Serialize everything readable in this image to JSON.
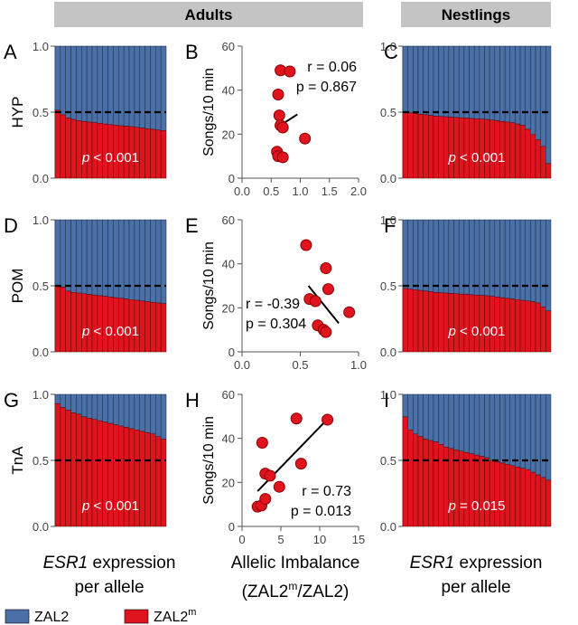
{
  "header": {
    "adults_label": "Adults",
    "nestlings_label": "Nestlings"
  },
  "legend": [
    {
      "label": "ZAL2",
      "color": "#4a70a8"
    },
    {
      "label": "ZAL2",
      "sup": "m",
      "color": "#e0141e"
    }
  ],
  "colors": {
    "blue": "#4a70a8",
    "red": "#e0141e",
    "header_bg": "#c4c4c4",
    "dot_fill": "#e0141e",
    "dot_stroke": "#8b0000"
  },
  "footer": {
    "left_line1_italic": "ESR1",
    "left_line1_rest": " expression",
    "left_line2": "per allele",
    "middle_line1": "Allelic Imbalance",
    "middle_line2_pre": "(ZAL2",
    "middle_line2_sup": "m",
    "middle_line2_mid": "/ZAL2)",
    "right_line1_italic": "ESR1",
    "right_line1_rest": " expression",
    "right_line2": "per allele"
  },
  "rows": [
    {
      "region": "HYP",
      "letters": [
        "A",
        "B",
        "C"
      ]
    },
    {
      "region": "POM",
      "letters": [
        "D",
        "E",
        "F"
      ]
    },
    {
      "region": "TnA",
      "letters": [
        "G",
        "H",
        "I"
      ]
    }
  ],
  "chart_data": [
    {
      "id": "A",
      "type": "bar",
      "stacked": true,
      "ylim": [
        0,
        1
      ],
      "yticks": [
        "0.0",
        "0.5",
        "1.0"
      ],
      "reference_line": 0.5,
      "series": [
        {
          "name": "ZAL2",
          "color": "#4a70a8"
        },
        {
          "name": "ZAL2m",
          "color": "#e0141e"
        }
      ],
      "values": [
        0.515,
        0.48,
        0.455,
        0.445,
        0.435,
        0.43,
        0.425,
        0.42,
        0.415,
        0.41,
        0.405,
        0.4,
        0.397,
        0.394,
        0.39,
        0.385,
        0.38,
        0.375,
        0.37,
        0.365,
        0.36
      ],
      "p_label_italic": "p",
      "p_label_rest": " < 0.001"
    },
    {
      "id": "B",
      "type": "scatter",
      "xlim": [
        0,
        2
      ],
      "ylim": [
        0,
        60
      ],
      "xticks": [
        "0.0",
        "0.5",
        "1.0",
        "1.5",
        "2.0"
      ],
      "yticks": [
        "0",
        "20",
        "40",
        "60"
      ],
      "ylabel": "Songs/10 min",
      "points": [
        [
          0.66,
          49
        ],
        [
          0.82,
          48.5
        ],
        [
          0.62,
          38
        ],
        [
          0.64,
          28.5
        ],
        [
          0.66,
          24
        ],
        [
          0.7,
          23
        ],
        [
          1.08,
          18
        ],
        [
          0.6,
          12
        ],
        [
          0.62,
          10
        ],
        [
          0.7,
          9.5
        ]
      ],
      "fit": [
        [
          0.6,
          23
        ],
        [
          0.95,
          29
        ]
      ],
      "r_label": "r =  0.06",
      "p_label": "p = 0.867",
      "stats_position": "top-right"
    },
    {
      "id": "C",
      "type": "bar",
      "stacked": true,
      "ylim": [
        0,
        1
      ],
      "yticks": [
        "0.0",
        "0.5",
        "1.0"
      ],
      "reference_line": 0.5,
      "series": [
        {
          "name": "ZAL2",
          "color": "#4a70a8"
        },
        {
          "name": "ZAL2m",
          "color": "#e0141e"
        }
      ],
      "values": [
        0.5,
        0.495,
        0.49,
        0.485,
        0.48,
        0.475,
        0.47,
        0.467,
        0.465,
        0.462,
        0.46,
        0.457,
        0.455,
        0.452,
        0.45,
        0.447,
        0.445,
        0.44,
        0.435,
        0.43,
        0.425,
        0.42,
        0.41,
        0.4,
        0.37,
        0.33,
        0.29,
        0.24,
        0.11
      ],
      "p_label_italic": "p",
      "p_label_rest": " < 0.001"
    },
    {
      "id": "D",
      "type": "bar",
      "stacked": true,
      "ylim": [
        0,
        1
      ],
      "yticks": [
        "0.0",
        "0.5",
        "1.0"
      ],
      "reference_line": 0.5,
      "series": [
        {
          "name": "ZAL2",
          "color": "#4a70a8"
        },
        {
          "name": "ZAL2m",
          "color": "#e0141e"
        }
      ],
      "values": [
        0.5,
        0.49,
        0.46,
        0.45,
        0.445,
        0.44,
        0.435,
        0.43,
        0.425,
        0.42,
        0.415,
        0.41,
        0.405,
        0.4,
        0.395,
        0.39,
        0.385,
        0.38,
        0.375,
        0.37,
        0.365
      ],
      "p_label_italic": "p",
      "p_label_rest": " < 0.001"
    },
    {
      "id": "E",
      "type": "scatter",
      "xlim": [
        0,
        1
      ],
      "ylim": [
        0,
        60
      ],
      "xticks": [
        "0.0",
        "0.5",
        "1.0"
      ],
      "yticks": [
        "0",
        "20",
        "40",
        "60"
      ],
      "ylabel": "Songs/10 min",
      "points": [
        [
          0.55,
          48.5
        ],
        [
          0.72,
          38
        ],
        [
          0.74,
          28.5
        ],
        [
          0.58,
          24
        ],
        [
          0.63,
          23
        ],
        [
          0.65,
          12
        ],
        [
          0.7,
          10
        ],
        [
          0.72,
          9
        ],
        [
          0.92,
          18
        ]
      ],
      "fit": [
        [
          0.57,
          30
        ],
        [
          0.83,
          13
        ]
      ],
      "r_label": "r = -0.39",
      "p_label": "p = 0.304",
      "stats_position": "bottom-left"
    },
    {
      "id": "F",
      "type": "bar",
      "stacked": true,
      "ylim": [
        0,
        1
      ],
      "yticks": [
        "0.0",
        "0.5",
        "1.0"
      ],
      "reference_line": 0.5,
      "series": [
        {
          "name": "ZAL2",
          "color": "#4a70a8"
        },
        {
          "name": "ZAL2m",
          "color": "#e0141e"
        }
      ],
      "values": [
        0.48,
        0.475,
        0.47,
        0.465,
        0.46,
        0.455,
        0.45,
        0.447,
        0.445,
        0.442,
        0.44,
        0.437,
        0.435,
        0.432,
        0.43,
        0.427,
        0.425,
        0.42,
        0.415,
        0.41,
        0.405,
        0.4,
        0.395,
        0.39,
        0.385,
        0.38,
        0.37,
        0.34,
        0.31
      ],
      "p_label_italic": "p",
      "p_label_rest": " < 0.001"
    },
    {
      "id": "G",
      "type": "bar",
      "stacked": true,
      "ylim": [
        0,
        1
      ],
      "yticks": [
        "0.0",
        "0.5",
        "1.0"
      ],
      "reference_line": 0.5,
      "series": [
        {
          "name": "ZAL2",
          "color": "#4a70a8"
        },
        {
          "name": "ZAL2m",
          "color": "#e0141e"
        }
      ],
      "values": [
        0.93,
        0.9,
        0.88,
        0.86,
        0.85,
        0.83,
        0.82,
        0.81,
        0.8,
        0.79,
        0.78,
        0.77,
        0.76,
        0.75,
        0.74,
        0.73,
        0.72,
        0.71,
        0.7,
        0.68,
        0.66
      ],
      "p_label_italic": "p",
      "p_label_rest": " < 0.001"
    },
    {
      "id": "H",
      "type": "scatter",
      "xlim": [
        0,
        15
      ],
      "ylim": [
        0,
        60
      ],
      "xticks": [
        "0",
        "5",
        "10",
        "15"
      ],
      "yticks": [
        "0",
        "20",
        "40",
        "60"
      ],
      "ylabel": "Songs/10 min",
      "xlabel": "Allelic Imbalance",
      "points": [
        [
          2.0,
          9
        ],
        [
          2.5,
          9.5
        ],
        [
          2.6,
          38
        ],
        [
          3.0,
          24
        ],
        [
          3.0,
          12.5
        ],
        [
          3.6,
          23
        ],
        [
          4.8,
          18
        ],
        [
          7.0,
          49
        ],
        [
          7.6,
          28.5
        ],
        [
          11.0,
          48.5
        ]
      ],
      "fit": [
        [
          2.0,
          16
        ],
        [
          10.8,
          48
        ]
      ],
      "r_label": "r = 0.73",
      "p_label": "p = 0.013",
      "stats_position": "bottom-right"
    },
    {
      "id": "I",
      "type": "bar",
      "stacked": true,
      "ylim": [
        0,
        1
      ],
      "yticks": [
        "0.0",
        "0.5",
        "1.0"
      ],
      "reference_line": 0.5,
      "series": [
        {
          "name": "ZAL2",
          "color": "#4a70a8"
        },
        {
          "name": "ZAL2m",
          "color": "#e0141e"
        }
      ],
      "values": [
        0.83,
        0.73,
        0.7,
        0.68,
        0.66,
        0.65,
        0.64,
        0.62,
        0.6,
        0.59,
        0.58,
        0.57,
        0.56,
        0.55,
        0.54,
        0.53,
        0.52,
        0.5,
        0.49,
        0.48,
        0.47,
        0.46,
        0.45,
        0.44,
        0.43,
        0.41,
        0.39,
        0.37,
        0.35
      ],
      "p_label_italic": "p",
      "p_label_rest": " = 0.015"
    }
  ]
}
